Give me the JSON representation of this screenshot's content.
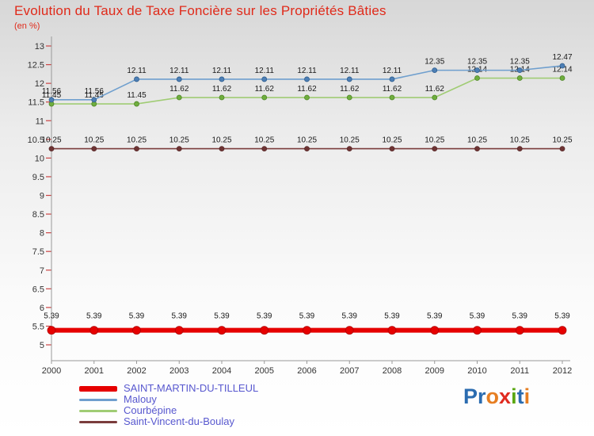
{
  "header": {
    "title": "Evolution du Taux de Taxe Foncière sur les Propriétés Bâties",
    "subtitle": "(en %)"
  },
  "chart_data": {
    "type": "line",
    "title": "Evolution du Taux de Taxe Foncière sur les Propriétés Bâties",
    "subtitle": "(en %)",
    "xlabel": "",
    "ylabel": "",
    "x": [
      2000,
      2001,
      2002,
      2003,
      2004,
      2005,
      2006,
      2007,
      2008,
      2009,
      2010,
      2011,
      2012
    ],
    "ylim": [
      5,
      13
    ],
    "ytick_step": 0.5,
    "grid": false,
    "legend_position": "bottom-left",
    "point_labels": true,
    "series": [
      {
        "name": "SAINT-MARTIN-DU-TILLEUL",
        "color": "#e60000",
        "values": [
          5.39,
          5.39,
          5.39,
          5.39,
          5.39,
          5.39,
          5.39,
          5.39,
          5.39,
          5.39,
          5.39,
          5.39,
          5.39
        ]
      },
      {
        "name": "Malouy",
        "color": "#6f9fce",
        "values": [
          11.56,
          11.56,
          12.11,
          12.11,
          12.11,
          12.11,
          12.11,
          12.11,
          12.11,
          12.35,
          12.35,
          12.35,
          12.47
        ]
      },
      {
        "name": "Courbépine",
        "color": "#a0cc74",
        "values": [
          11.45,
          11.45,
          11.45,
          11.62,
          11.62,
          11.62,
          11.62,
          11.62,
          11.62,
          11.62,
          12.14,
          12.14,
          12.14
        ]
      },
      {
        "name": "Saint-Vincent-du-Boulay",
        "color": "#7a3c3c",
        "values": [
          10.25,
          10.25,
          10.25,
          10.25,
          10.25,
          10.25,
          10.25,
          10.25,
          10.25,
          10.25,
          10.25,
          10.25,
          10.25
        ]
      }
    ]
  },
  "logo": {
    "text": "Proxiti",
    "letters": [
      {
        "ch": "P",
        "color": "#2b6cb0"
      },
      {
        "ch": "r",
        "color": "#2b6cb0"
      },
      {
        "ch": "o",
        "color": "#e67e22"
      },
      {
        "ch": "x",
        "color": "#e02b20"
      },
      {
        "ch": "i",
        "color": "#5aa711"
      },
      {
        "ch": "t",
        "color": "#2b6cb0"
      },
      {
        "ch": "i",
        "color": "#e67e22"
      }
    ]
  },
  "colors": {
    "title": "#e02a1a",
    "legend_text": "#5858cf",
    "axis": "#999999",
    "ytick": "#cc4444",
    "tick_label": "#333333",
    "point_label": "#1a1a1a"
  }
}
